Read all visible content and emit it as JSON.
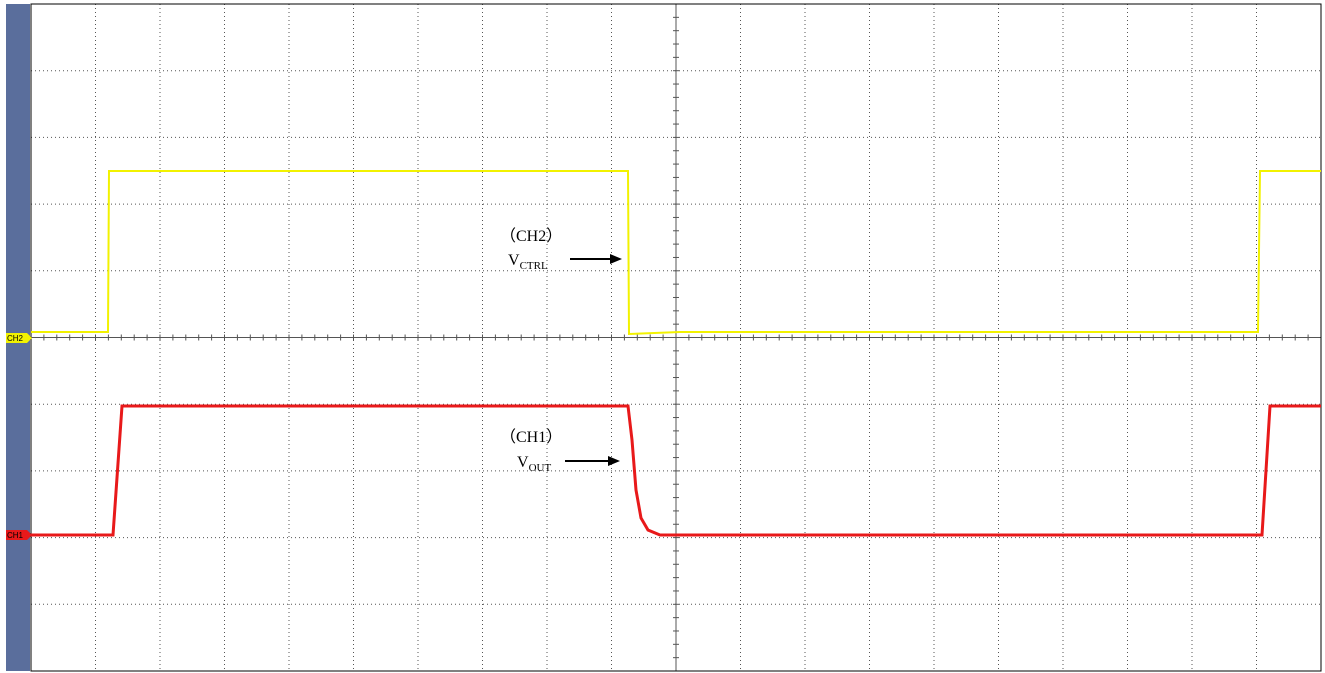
{
  "markers": {
    "ch2": "CH2",
    "ch1": "CH1"
  },
  "annotations": [
    {
      "label": "（CH2）",
      "symbol": "V",
      "subscript": "CTRL"
    },
    {
      "label": "（CH1）",
      "symbol": "V",
      "subscript": "OUT"
    }
  ]
}
